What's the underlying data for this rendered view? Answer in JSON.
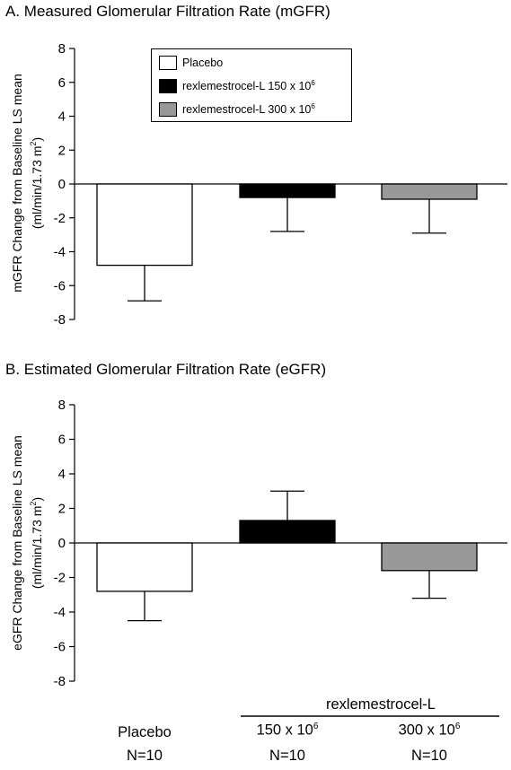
{
  "chart_data": [
    {
      "type": "bar",
      "title": "A. Measured Glomerular Filtration Rate (mGFR)",
      "ylabel_line1": "mGFR Change from Baseline  LS mean",
      "ylabel_line2": "(ml/min/1.73 m",
      "ylabel_sup": "2",
      "ylabel_close": ")",
      "ylim": [
        -8,
        8
      ],
      "yticks": [
        "8",
        "6",
        "4",
        "2",
        "0",
        "-2",
        "-4",
        "-6",
        "-8"
      ],
      "categories": [
        "Placebo",
        "rexlemestrocel-L 150 x 10^6",
        "rexlemestrocel-L 300 x 10^6"
      ],
      "values": [
        -4.8,
        -0.8,
        -0.9
      ],
      "error_ends": [
        -6.9,
        -2.8,
        -2.9
      ],
      "colors": [
        "#ffffff",
        "#000000",
        "#999999"
      ],
      "legend": {
        "placement": "top-center",
        "entries": [
          {
            "label": "Placebo",
            "sup": "",
            "color": "#ffffff"
          },
          {
            "label": "rexlemestrocel-L 150 x 10",
            "sup": "6",
            "color": "#000000"
          },
          {
            "label": "rexlemestrocel-L 300 x 10",
            "sup": "6",
            "color": "#999999"
          }
        ]
      }
    },
    {
      "type": "bar",
      "title": "B. Estimated Glomerular Filtration Rate (eGFR)",
      "ylabel_line1": "eGFR Change from Baseline  LS mean",
      "ylabel_line2": "(ml/min/1.73 m",
      "ylabel_sup": "2",
      "ylabel_close": ")",
      "ylim": [
        -8,
        8
      ],
      "yticks": [
        "8",
        "6",
        "4",
        "2",
        "0",
        "-2",
        "-4",
        "-6",
        "-8"
      ],
      "categories": [
        "Placebo",
        "rexlemestrocel-L 150 x 10^6",
        "rexlemestrocel-L 300 x 10^6"
      ],
      "values": [
        -2.8,
        1.3,
        -1.6
      ],
      "error_ends": [
        -4.5,
        3.0,
        -3.2
      ],
      "colors": [
        "#ffffff",
        "#000000",
        "#999999"
      ]
    }
  ],
  "bottom_labels": {
    "group_label": "rexlemestrocel-L",
    "placebo_name": "Placebo",
    "placebo_n": "N=10",
    "dose1_base": "150 x 10",
    "dose1_sup": "6",
    "dose1_n": "N=10",
    "dose2_base": "300 x 10",
    "dose2_sup": "6",
    "dose2_n": "N=10"
  }
}
